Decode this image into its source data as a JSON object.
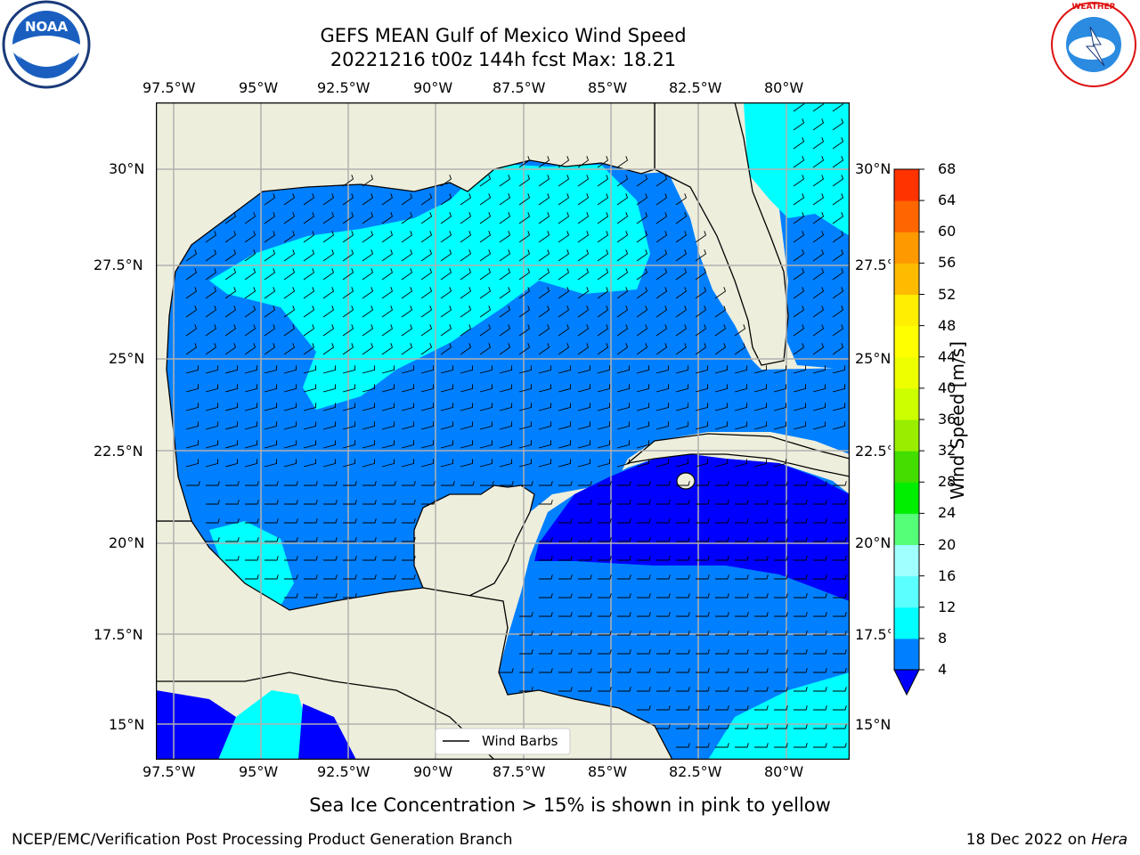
{
  "title": {
    "line1": "GEFS MEAN Gulf of Mexico Wind Speed",
    "line2": "20221216 t00z 144h fcst   Max: 18.21"
  },
  "logos": {
    "left": {
      "text": "NOAA",
      "ring_text": "NATIONAL OCEANIC AND ATMOSPHERIC ADMINISTRATION · U.S. DEPARTMENT OF COMMERCE",
      "icon": "noaa-logo"
    },
    "right": {
      "ring_text": "NATIONAL WEATHER SERVICE",
      "icon": "nws-logo"
    }
  },
  "map": {
    "lon_ticks": [
      "97.5°W",
      "95°W",
      "92.5°W",
      "90°W",
      "87.5°W",
      "85°W",
      "82.5°W",
      "80°W"
    ],
    "lat_ticks": [
      "30°N",
      "27.5°N",
      "25°N",
      "22.5°N",
      "20°N",
      "17.5°N",
      "15°N"
    ],
    "lon_range": [
      -98,
      -78.2
    ],
    "lat_range": [
      14,
      31.8
    ],
    "grid": true,
    "legend": {
      "label": "Wind Barbs",
      "placement": "bottom-center"
    },
    "colors": {
      "land": "#eeeedd",
      "wind_4_8": "#0080ff",
      "wind_8_12": "#00ffff",
      "wind_12_16": "#5cffff",
      "wind_below_4": "#0000ff",
      "gridline": "#b0b0b0"
    }
  },
  "colorbar": {
    "label": "Wind Speed [m/s]",
    "ticks": [
      "4",
      "8",
      "12",
      "16",
      "20",
      "24",
      "28",
      "32",
      "36",
      "40",
      "44",
      "48",
      "52",
      "56",
      "60",
      "64",
      "68"
    ],
    "colors": [
      "#0080ff",
      "#00ffff",
      "#5cffff",
      "#a0ffff",
      "#55ff78",
      "#00ee00",
      "#44dd00",
      "#99ee00",
      "#ccff00",
      "#eeff00",
      "#ffff00",
      "#ffee00",
      "#ffbb00",
      "#ff9900",
      "#ff6600",
      "#ff3300",
      "#ff0000"
    ],
    "extend_color": "#0000ff"
  },
  "note": "Sea Ice Concentration > 15% is shown in pink to yellow",
  "footer": {
    "left": "NCEP/EMC/Verification Post Processing Product Generation Branch",
    "right_prefix": "18 Dec 2022 on ",
    "right_machine": "Hera"
  }
}
